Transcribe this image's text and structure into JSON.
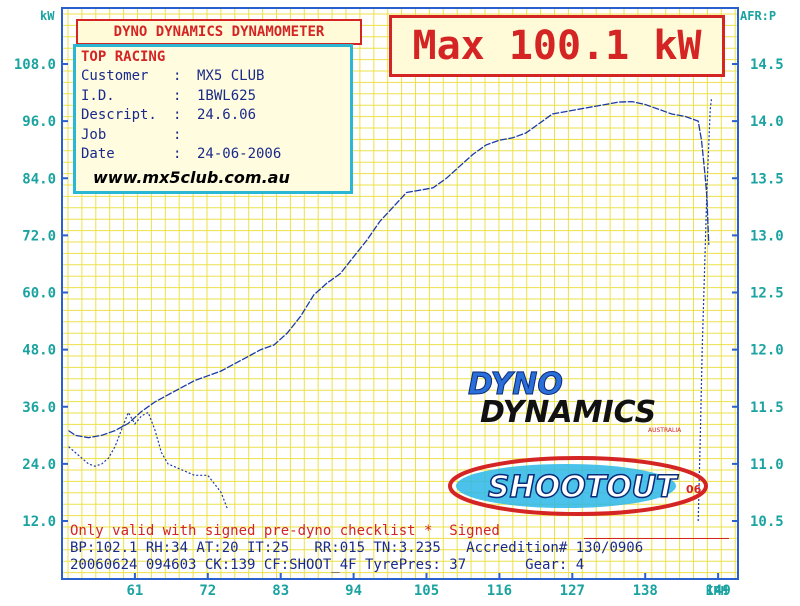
{
  "chart_data": {
    "type": "line",
    "title": "DYNO DYNAMICS DYNAMOMETER",
    "max_label": "Max 100.1 kW",
    "y_left": {
      "unit": "kW",
      "ticks": [
        "108.0",
        "96.0",
        "84.0",
        "72.0",
        "60.0",
        "48.0",
        "36.0",
        "24.0",
        "12.0"
      ],
      "ylim": [
        12,
        114
      ]
    },
    "y_right": {
      "unit": "AFR:P",
      "ticks": [
        "14.5",
        "14.0",
        "13.5",
        "13.0",
        "12.5",
        "12.0",
        "11.5",
        "11.0",
        "10.5"
      ]
    },
    "x_axis": {
      "unit": "KPH",
      "ticks": [
        "61",
        "72",
        "83",
        "94",
        "105",
        "116",
        "127",
        "138",
        "149"
      ]
    },
    "series": [
      {
        "x": [
          51,
          52,
          54,
          56,
          58,
          60,
          62,
          64,
          66,
          68,
          70,
          72,
          74,
          76,
          78,
          80,
          82,
          84,
          86,
          88,
          90,
          92,
          94,
          96,
          98,
          100,
          102,
          104,
          106,
          108,
          110,
          112,
          114,
          116,
          118,
          120,
          122,
          124,
          126,
          128,
          130,
          132,
          134,
          136,
          138,
          140,
          142,
          144,
          146,
          146.5,
          147,
          147.3,
          147.6
        ],
        "values": [
          31,
          30,
          29.5,
          30,
          31,
          32.5,
          35,
          37,
          38.5,
          40,
          41.5,
          42.5,
          43.5,
          45,
          46.5,
          48,
          49,
          51.5,
          55,
          59.5,
          62,
          64,
          67.5,
          71,
          75,
          78,
          81,
          81.5,
          82,
          84,
          86.5,
          89,
          91,
          92,
          92.5,
          93.5,
          95.5,
          97.5,
          98,
          98.5,
          99,
          99.5,
          100,
          100.1,
          99.5,
          98.5,
          97.5,
          97,
          96,
          92,
          85,
          80,
          70
        ]
      }
    ],
    "afr_series": [
      {
        "x": [
          51,
          52,
          53,
          54,
          55,
          56,
          57,
          58,
          59,
          60,
          61,
          62,
          63,
          64,
          65,
          66,
          68,
          70,
          72,
          74,
          75
        ],
        "values": [
          11.15,
          11.1,
          11.05,
          11.0,
          10.98,
          11.0,
          11.05,
          11.15,
          11.3,
          11.45,
          11.35,
          11.42,
          11.45,
          11.3,
          11.1,
          11.0,
          10.95,
          10.9,
          10.9,
          10.75,
          10.6
        ]
      },
      {
        "x": [
          146,
          146.3,
          146.6,
          147,
          147.3,
          147.6,
          147.8,
          148
        ],
        "values": [
          10.5,
          11.2,
          12.0,
          12.8,
          13.4,
          13.8,
          14.1,
          14.2
        ]
      }
    ]
  },
  "info": {
    "org": "TOP RACING",
    "rows": [
      {
        "label": "Customer",
        "value": "MX5 CLUB"
      },
      {
        "label": "I.D.",
        "value": "1BWL625"
      },
      {
        "label": "Descript.",
        "value": "24.6.06"
      },
      {
        "label": "Job",
        "value": ""
      },
      {
        "label": "Date",
        "value": "24-06-2006"
      }
    ],
    "url": "www.mx5club.com.au"
  },
  "footer": {
    "line1": "Only valid with signed pre-dyno checklist *  Signed",
    "line2": "BP:102.1 RH:34 AT:20 IT:25   RR:015 TN:3.235   Accredition# 130/0906",
    "line3": "20060624 094603 CK:139 CF:SHOOT_4F TyrePres: 37       Gear: 4"
  },
  "logos": {
    "dyno_1": "DYNO",
    "dyno_2": "DYNAMICS",
    "dyno_3": "AUSTRALIA",
    "shootout_1": "SHOOTOUT",
    "shootout_2": "06"
  },
  "colors": {
    "grid": "#ece14a",
    "frame": "#2a5fd0",
    "curve": "#1a3aa8",
    "accent": "#d42424",
    "ticks": "#1aa3a0"
  }
}
